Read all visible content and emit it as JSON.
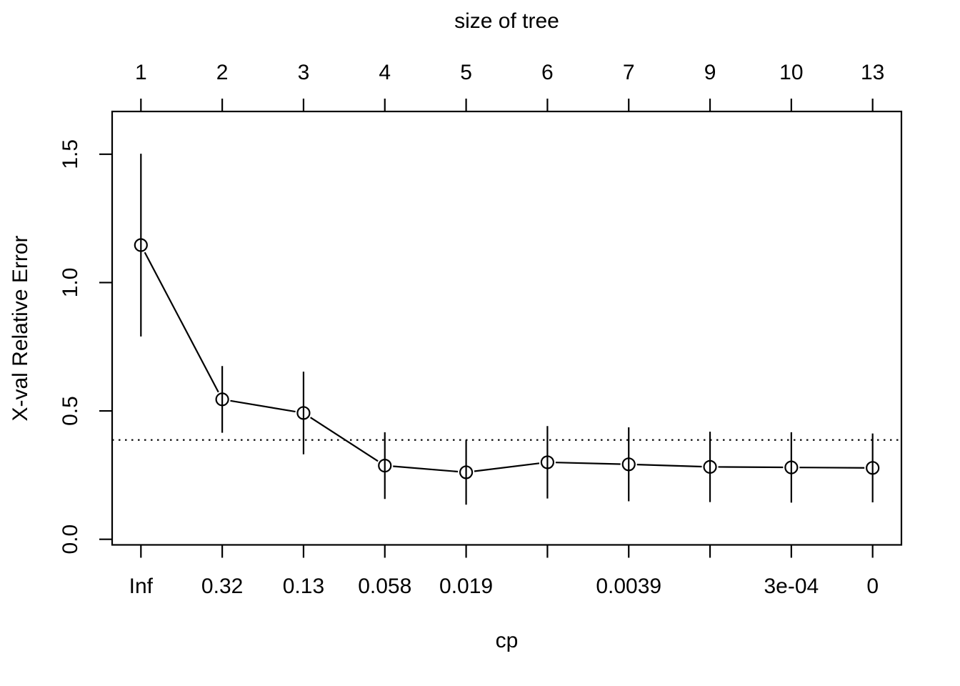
{
  "chart_data": {
    "type": "line",
    "description": "R rpart plotcp cross-validation error plot",
    "top_axis": {
      "title": "size of tree",
      "tick_labels": [
        "1",
        "2",
        "3",
        "4",
        "5",
        "6",
        "7",
        "9",
        "10",
        "13"
      ]
    },
    "bottom_axis": {
      "title": "cp",
      "tick_labels": [
        "Inf",
        "0.32",
        "0.13",
        "0.058",
        "0.019",
        "",
        "0.0039",
        "",
        "3e-04",
        "0"
      ]
    },
    "y_axis": {
      "title": "X-val Relative Error",
      "tick_values": [
        0.0,
        0.5,
        1.0,
        1.5
      ],
      "tick_labels": [
        "0.0",
        "0.5",
        "1.0",
        "1.5"
      ]
    },
    "series": [
      {
        "name": "xerror",
        "values": [
          1.146,
          0.545,
          0.492,
          0.287,
          0.261,
          0.3,
          0.292,
          0.282,
          0.28,
          0.278
        ],
        "std": [
          0.356,
          0.13,
          0.161,
          0.13,
          0.126,
          0.141,
          0.144,
          0.137,
          0.137,
          0.134
        ]
      }
    ],
    "reference_line": {
      "y": 0.387,
      "style": "dotted"
    },
    "ylim": [
      -0.022,
      1.668
    ],
    "marker": "open-circle",
    "line_color": "#000000",
    "background_color": "#ffffff",
    "grid": false,
    "legend": "none"
  }
}
